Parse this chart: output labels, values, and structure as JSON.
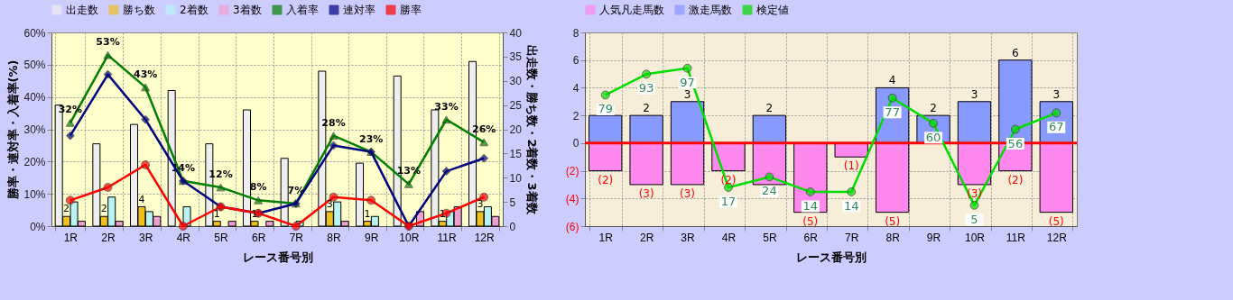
{
  "chart_data": [
    {
      "type": "bar",
      "xlabel": "レース番号別",
      "ylabel": "勝率・連対率・入着率(%)",
      "y2label": "出走数・勝ち数・2着数・3着数",
      "categories": [
        "1R",
        "2R",
        "3R",
        "4R",
        "5R",
        "6R",
        "7R",
        "8R",
        "9R",
        "10R",
        "11R",
        "12R"
      ],
      "ylim": [
        0,
        60
      ],
      "yticks": [
        {
          "value": 0,
          "label": "0%"
        },
        {
          "value": 10,
          "label": "10%"
        },
        {
          "value": 20,
          "label": "20%"
        },
        {
          "value": 30,
          "label": "30%"
        },
        {
          "value": 40,
          "label": "40%"
        },
        {
          "value": 50,
          "label": "50%"
        },
        {
          "value": 60,
          "label": "60%"
        }
      ],
      "y2lim": [
        0,
        40
      ],
      "y2ticks": [
        0,
        5,
        10,
        15,
        20,
        25,
        30,
        35,
        40
      ],
      "grid": true,
      "legend": "top",
      "series": [
        {
          "name": "出走数",
          "color": "#eeeeee",
          "axis": "y2",
          "values": [
            25,
            17,
            21,
            28,
            17,
            24,
            14,
            32,
            13,
            31,
            24,
            34
          ]
        },
        {
          "name": "勝ち数",
          "color": "#f0c020",
          "axis": "y2",
          "values": [
            2,
            2,
            4,
            0,
            1,
            1,
            0,
            3,
            1,
            0,
            1,
            3
          ],
          "value_labels": [
            "2",
            "2",
            "4",
            null,
            "1",
            "1",
            null,
            "3",
            "1",
            null,
            "1",
            "3"
          ]
        },
        {
          "name": "2着数",
          "color": "#b8f4f4",
          "axis": "y2",
          "values": [
            5,
            6,
            3,
            4,
            0,
            0,
            1,
            5,
            2,
            0,
            3,
            4
          ]
        },
        {
          "name": "3着数",
          "color": "#f0a0d0",
          "axis": "y2",
          "values": [
            1,
            1,
            2,
            0,
            1,
            1,
            0,
            1,
            0,
            3,
            4,
            2
          ]
        },
        {
          "name": "入着率",
          "type": "line",
          "marker": "triangle",
          "color": "#008000",
          "values": [
            32,
            53,
            43,
            14,
            12,
            8,
            7,
            28,
            23,
            13,
            33,
            26
          ],
          "value_labels": [
            "32%",
            "53%",
            "43%",
            "14%",
            "12%",
            "8%",
            "7%",
            "28%",
            "23%",
            "13%",
            "33%",
            "26%"
          ]
        },
        {
          "name": "連対率",
          "type": "line",
          "marker": "diamond",
          "color": "#000080",
          "values": [
            28,
            47,
            33,
            14,
            6,
            4,
            7,
            25,
            23,
            0,
            17,
            21
          ]
        },
        {
          "name": "勝率",
          "type": "line",
          "marker": "circle",
          "color": "#ff0000",
          "values": [
            8,
            12,
            19,
            0,
            6,
            4,
            0,
            9,
            8,
            0,
            4,
            9
          ]
        }
      ]
    },
    {
      "type": "bar",
      "xlabel": "レース番号別",
      "categories": [
        "1R",
        "2R",
        "3R",
        "4R",
        "5R",
        "6R",
        "7R",
        "8R",
        "9R",
        "10R",
        "11R",
        "12R"
      ],
      "stacked": true,
      "ylim": [
        -6,
        8
      ],
      "yticks": [
        {
          "value": -6,
          "label": "(6)"
        },
        {
          "value": -4,
          "label": "(4)"
        },
        {
          "value": -2,
          "label": "(2)"
        },
        0,
        2,
        4,
        6,
        8
      ],
      "y2lim": [
        -9,
        121
      ],
      "grid": true,
      "legend": "top",
      "ref_lines": [
        {
          "axis": "y",
          "value": 0,
          "color": "#ff0000"
        }
      ],
      "series": [
        {
          "name": "人気凡走馬数",
          "color": "#ff88ee",
          "values": [
            -2,
            -3,
            -3,
            -2,
            -3,
            -5,
            -1,
            -5,
            0,
            -3,
            -2,
            -5
          ],
          "value_labels": [
            "(2)",
            "(3)",
            "(3)",
            "(2)",
            null,
            "(5)",
            "(1)",
            "(5)",
            null,
            "(3)",
            "(2)",
            "(5)"
          ]
        },
        {
          "name": "激走馬数",
          "color": "#8899ff",
          "values": [
            2,
            2,
            3,
            0,
            2,
            0,
            0,
            4,
            2,
            3,
            6,
            3
          ],
          "value_labels": [
            null,
            "2",
            "3",
            null,
            "2",
            null,
            null,
            "4",
            "2",
            "3",
            "6",
            "3"
          ]
        },
        {
          "name": "検定値",
          "type": "line",
          "axis": "y2",
          "marker": "circle",
          "color": "#00dd00",
          "values": [
            79,
            93,
            97,
            17,
            24,
            14,
            14,
            77,
            60,
            5,
            56,
            67
          ],
          "value_labels": [
            "79",
            "93",
            "97",
            "17",
            "24",
            "14",
            "14",
            "77",
            "60",
            "5",
            "56",
            "67"
          ]
        }
      ]
    }
  ]
}
